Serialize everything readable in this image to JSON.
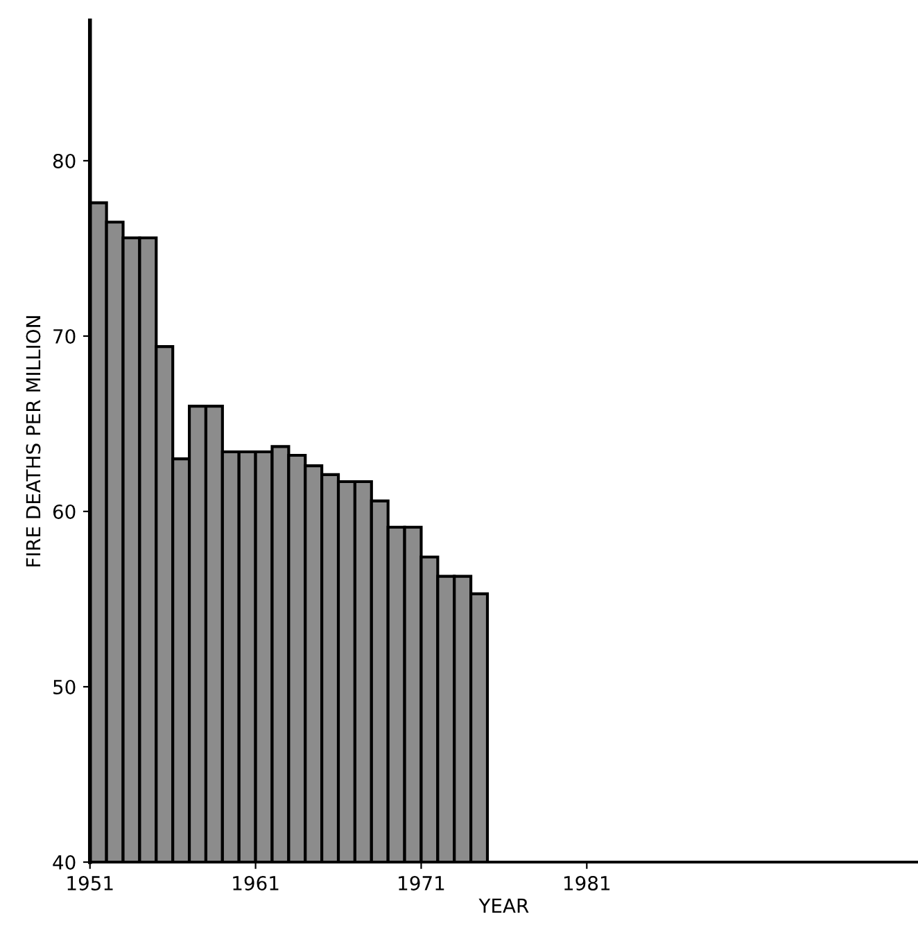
{
  "chart_data": {
    "type": "histogram",
    "xlabel": "YEAR",
    "ylabel": "FIRE DEATHS PER MILLION",
    "bins": [
      1951,
      1952,
      1953,
      1954,
      1955,
      1956,
      1957,
      1958,
      1959,
      1960,
      1961,
      1962,
      1963,
      1964,
      1965,
      1966,
      1967,
      1968,
      1969,
      1970,
      1971,
      1972,
      1973,
      1974,
      1975
    ],
    "values": [
      77.6,
      76.5,
      75.6,
      75.6,
      69.4,
      63.0,
      66.0,
      66.0,
      63.4,
      63.4,
      63.4,
      63.7,
      63.2,
      62.6,
      62.1,
      61.7,
      61.7,
      60.6,
      59.1,
      59.1,
      57.4,
      56.3,
      56.3,
      55.3
    ],
    "color": "#8c8c8c",
    "xlim": [
      1951,
      2001
    ],
    "ylim": [
      40,
      88
    ],
    "xticks": [
      1951,
      1961,
      1971,
      1981
    ],
    "yticks": [
      40,
      50,
      60,
      70,
      80
    ],
    "grid": false,
    "legend": false
  }
}
